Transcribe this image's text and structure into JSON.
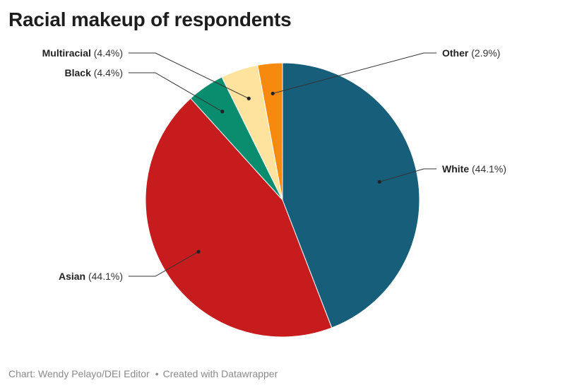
{
  "title": "Racial makeup of respondents",
  "chart_data": {
    "type": "pie",
    "title": "Racial makeup of respondents",
    "slices": [
      {
        "name": "White",
        "value": 44.1,
        "label": "(44.1%)",
        "color": "#175e7a",
        "label_side": "right"
      },
      {
        "name": "Asian",
        "value": 44.1,
        "label": "(44.1%)",
        "color": "#c71c1d",
        "label_side": "left"
      },
      {
        "name": "Black",
        "value": 4.4,
        "label": "(4.4%)",
        "color": "#0a8c6e",
        "label_side": "left"
      },
      {
        "name": "Multiracial",
        "value": 4.4,
        "label": "(4.4%)",
        "color": "#fde39e",
        "label_side": "left"
      },
      {
        "name": "Other",
        "value": 2.9,
        "label": "(2.9%)",
        "color": "#f7890f",
        "label_side": "right"
      }
    ]
  },
  "footer": {
    "source": "Chart: Wendy Pelayo/DEI Editor",
    "credit": "Created with Datawrapper",
    "separator": "•"
  }
}
